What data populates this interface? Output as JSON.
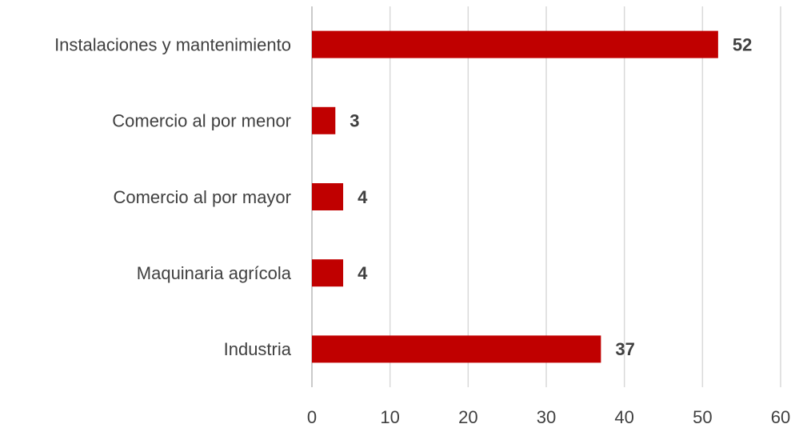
{
  "chart_data": {
    "type": "bar",
    "categories": [
      "Instalaciones y mantenimiento",
      "Comercio al por menor",
      "Comercio al por mayor",
      "Maquinaria agrícola",
      "Industria"
    ],
    "values": [
      52,
      3,
      4,
      4,
      37
    ],
    "color": "#c00000",
    "xlim": [
      0,
      60
    ],
    "xticks": [
      0,
      10,
      20,
      30,
      40,
      50,
      60
    ],
    "grid": true
  }
}
